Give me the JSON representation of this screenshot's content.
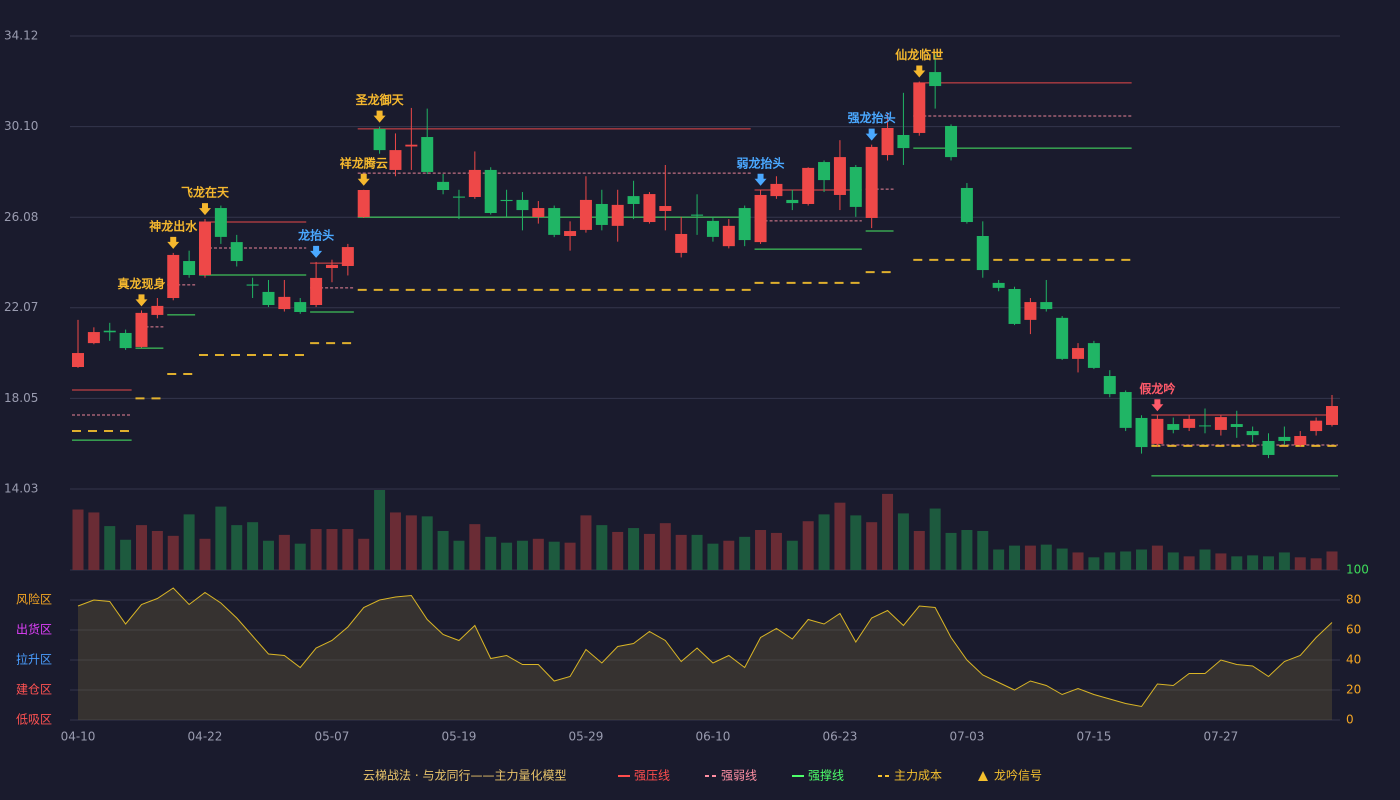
{
  "chart_data": {
    "type": "candlestick",
    "categories": [
      "04-10",
      null,
      null,
      null,
      null,
      null,
      null,
      null,
      "04-22",
      null,
      null,
      null,
      null,
      null,
      null,
      null,
      "05-07",
      null,
      null,
      null,
      null,
      null,
      null,
      null,
      "05-19",
      null,
      null,
      null,
      null,
      null,
      null,
      null,
      "05-29",
      null,
      null,
      null,
      null,
      null,
      null,
      null,
      "06-10",
      null,
      null,
      null,
      null,
      null,
      null,
      null,
      "06-23",
      null,
      null,
      null,
      null,
      null,
      null,
      null,
      "07-03",
      null,
      null,
      null,
      null,
      null,
      null,
      null,
      "07-15",
      null,
      null,
      null,
      null,
      null,
      null,
      null,
      "07-27",
      null,
      null,
      null,
      null,
      null,
      null,
      null
    ],
    "open": [
      19.44,
      20.5,
      21.05,
      20.95,
      20.33,
      21.75,
      22.5,
      24.14,
      23.52,
      26.49,
      24.98,
      23.1,
      22.77,
      22.01,
      22.32,
      22.19,
      23.83,
      23.92,
      26.09,
      30.0,
      28.18,
      29.22,
      29.64,
      27.65,
      27.0,
      26.98,
      28.18,
      26.85,
      26.85,
      26.09,
      26.49,
      25.25,
      25.52,
      26.67,
      25.7,
      27.02,
      25.87,
      26.36,
      24.5,
      26.2,
      25.92,
      24.8,
      26.49,
      24.98,
      27.02,
      26.85,
      26.67,
      28.53,
      27.07,
      28.31,
      26.05,
      28.84,
      29.73,
      29.82,
      32.52,
      30.13,
      27.38,
      25.25,
      23.17,
      22.9,
      21.53,
      22.32,
      21.62,
      19.8,
      20.5,
      19.04,
      18.33,
      17.18,
      16.03,
      16.91,
      16.74,
      16.85,
      16.65,
      16.91,
      16.6,
      16.16,
      16.34,
      15.98,
      16.6,
      16.87
    ],
    "close": [
      20.06,
      20.99,
      20.98,
      20.28,
      21.84,
      22.15,
      24.41,
      23.52,
      25.87,
      25.21,
      24.14,
      23.05,
      22.19,
      22.55,
      21.88,
      23.39,
      23.97,
      24.76,
      27.29,
      29.06,
      29.06,
      29.3,
      28.09,
      27.29,
      26.95,
      28.18,
      26.27,
      26.8,
      26.4,
      26.49,
      25.3,
      25.47,
      26.85,
      25.74,
      26.63,
      26.67,
      27.11,
      26.58,
      25.34,
      26.15,
      25.21,
      25.7,
      25.07,
      27.07,
      27.56,
      26.71,
      28.27,
      27.73,
      28.75,
      26.54,
      29.2,
      30.04,
      29.15,
      32.04,
      31.9,
      28.75,
      25.87,
      23.74,
      22.95,
      21.35,
      22.32,
      22.01,
      19.8,
      20.28,
      19.4,
      18.24,
      16.74,
      15.89,
      17.14,
      16.65,
      17.14,
      16.81,
      17.22,
      16.78,
      16.42,
      15.54,
      16.16,
      16.38,
      17.06,
      17.71
    ],
    "high": [
      21.53,
      21.2,
      21.4,
      21.1,
      21.95,
      22.5,
      24.5,
      24.6,
      26.0,
      26.6,
      25.3,
      23.4,
      23.3,
      23.3,
      22.5,
      24.1,
      24.2,
      24.9,
      27.3,
      30.1,
      29.8,
      30.93,
      30.9,
      28.0,
      27.3,
      29.0,
      28.3,
      27.3,
      27.2,
      26.8,
      26.6,
      25.9,
      27.9,
      27.3,
      27.3,
      27.7,
      27.2,
      28.4,
      26.1,
      27.1,
      26.1,
      26.0,
      26.6,
      27.3,
      27.9,
      27.3,
      28.3,
      28.6,
      29.5,
      28.4,
      29.3,
      30.7,
      31.6,
      32.1,
      33.3,
      30.2,
      27.6,
      25.9,
      23.3,
      23.0,
      22.5,
      23.3,
      21.7,
      20.5,
      20.6,
      19.3,
      18.4,
      17.3,
      17.3,
      17.2,
      17.3,
      17.6,
      17.3,
      17.5,
      16.8,
      16.5,
      16.8,
      16.6,
      17.2,
      18.2
    ],
    "low": [
      19.4,
      20.45,
      20.6,
      20.2,
      20.3,
      21.6,
      22.4,
      23.4,
      23.4,
      24.9,
      23.9,
      22.5,
      22.1,
      21.9,
      21.8,
      22.1,
      23.2,
      23.5,
      26.05,
      28.9,
      27.9,
      28.18,
      28.0,
      27.1,
      26.0,
      26.9,
      26.2,
      26.1,
      25.5,
      25.8,
      25.2,
      24.6,
      25.4,
      25.5,
      25.0,
      26.0,
      25.8,
      25.5,
      24.3,
      25.3,
      25.0,
      24.7,
      24.8,
      24.9,
      26.9,
      26.4,
      26.6,
      27.2,
      26.4,
      26.1,
      25.6,
      28.6,
      28.4,
      29.7,
      30.9,
      28.6,
      25.8,
      23.4,
      22.8,
      21.3,
      20.9,
      21.9,
      19.75,
      19.2,
      19.35,
      18.1,
      16.6,
      15.6,
      15.9,
      16.5,
      16.6,
      16.5,
      16.4,
      16.3,
      16.1,
      15.4,
      16.0,
      15.9,
      16.4,
      16.8
    ],
    "volume": [
      62,
      59,
      45,
      31,
      46,
      40,
      35,
      57,
      32,
      65,
      46,
      49,
      30,
      36,
      27,
      42,
      42,
      42,
      32,
      82,
      59,
      56,
      55,
      40,
      30,
      47,
      34,
      28,
      30,
      32,
      29,
      28,
      56,
      46,
      39,
      43,
      37,
      48,
      36,
      36,
      27,
      30,
      34,
      41,
      38,
      30,
      50,
      57,
      69,
      56,
      49,
      78,
      58,
      40,
      63,
      38,
      41,
      40,
      21,
      25,
      25,
      26,
      22,
      18,
      13,
      18,
      19,
      21,
      25,
      18,
      14,
      21,
      17,
      14,
      15,
      14,
      18,
      13,
      12,
      19
    ],
    "up_color": "#ee4848",
    "down_color": "#20b565",
    "ylim": [
      14.03,
      34.12
    ],
    "yticks": [
      14.03,
      18.05,
      22.07,
      26.08,
      {
        "value": 30.1,
        "label": "30.10"
      },
      34.12
    ],
    "levels": [
      {
        "start": 0,
        "end": 3,
        "values": [
          18.42,
          17.31,
          16.2,
          16.6
        ]
      },
      {
        "start": 4,
        "end": 5,
        "values": [
          null,
          21.22,
          20.28,
          18.05
        ]
      },
      {
        "start": 6,
        "end": 7,
        "values": [
          null,
          23.08,
          21.75,
          19.13
        ]
      },
      {
        "start": 8,
        "end": 14,
        "values": [
          25.87,
          24.72,
          23.52,
          19.97
        ]
      },
      {
        "start": 15,
        "end": 17,
        "values": [
          24.05,
          22.95,
          21.88,
          20.5
        ]
      },
      {
        "start": 18,
        "end": 42,
        "values": [
          30.0,
          28.04,
          26.09,
          22.86
        ]
      },
      {
        "start": 43,
        "end": 49,
        "values": [
          27.29,
          25.92,
          24.67,
          23.17
        ]
      },
      {
        "start": 50,
        "end": 51,
        "values": [
          null,
          27.33,
          25.47,
          23.65
        ]
      },
      {
        "start": 53,
        "end": 66,
        "values": [
          32.04,
          30.57,
          29.15,
          24.19
        ]
      },
      {
        "start": 68,
        "end": 79,
        "values": [
          17.31,
          15.98,
          14.61,
          15.94
        ]
      }
    ],
    "signals": [
      {
        "index": 4,
        "label": "真龙现身",
        "color": "#f5b82e"
      },
      {
        "index": 6,
        "label": "神龙出水",
        "color": "#f5b82e"
      },
      {
        "index": 8,
        "label": "飞龙在天",
        "color": "#f5b82e"
      },
      {
        "index": 15,
        "label": "龙抬头",
        "color": "#4aa8ff"
      },
      {
        "index": 18,
        "label": "祥龙腾云",
        "color": "#f5b82e"
      },
      {
        "index": 19,
        "label": "圣龙御天",
        "color": "#f5b82e"
      },
      {
        "index": 43,
        "label": "弱龙抬头",
        "color": "#4aa8ff"
      },
      {
        "index": 50,
        "label": "强龙抬头",
        "color": "#4aa8ff"
      },
      {
        "index": 53,
        "label": "仙龙临世",
        "color": "#f5b82e"
      },
      {
        "index": 68,
        "label": "假龙吟",
        "color": "#ff5a6a"
      }
    ],
    "indicator": {
      "values": [
        76,
        80,
        79,
        64,
        77,
        81,
        88,
        77,
        85,
        78,
        68,
        56,
        44,
        43,
        35,
        48,
        53,
        62,
        75,
        80,
        82,
        83,
        67,
        57,
        53,
        63,
        41,
        43,
        37,
        37,
        26,
        29,
        47,
        38,
        49,
        51,
        59,
        53,
        39,
        48,
        38,
        43,
        35,
        55,
        61,
        54,
        67,
        64,
        71,
        52,
        68,
        73,
        63,
        76,
        75,
        55,
        40,
        30,
        25,
        20,
        26,
        23,
        17,
        21,
        17,
        14,
        11,
        9,
        24,
        23,
        31,
        31,
        40,
        37,
        36,
        29,
        39,
        43,
        55,
        65
      ],
      "color": "#d9b526",
      "ylim": [
        0,
        100
      ],
      "yticks": [
        0,
        20,
        40,
        60,
        80,
        100
      ],
      "zones": [
        {
          "label": "风险区",
          "value": 80,
          "color": "#f5a623"
        },
        {
          "label": "出货区",
          "value": 60,
          "color": "#e040fb"
        },
        {
          "label": "拉升区",
          "value": 40,
          "color": "#4a9eff"
        },
        {
          "label": "建仓区",
          "value": 20,
          "color": "#ff5252"
        },
        {
          "label": "低吸区",
          "value": 0,
          "color": "#ff5252"
        }
      ]
    },
    "legend": {
      "title": "云梯战法 · 与龙同行——主力量化模型",
      "title_color": "#e8c36a",
      "items": [
        {
          "label": "强压线",
          "color": "#ff4d4d",
          "style": "solid"
        },
        {
          "label": "强弱线",
          "color": "#ff8fa3",
          "style": "dashed"
        },
        {
          "label": "强撑线",
          "color": "#4dff6a",
          "style": "solid"
        },
        {
          "label": "主力成本",
          "color": "#f5c02e",
          "style": "dashed"
        },
        {
          "label": "龙吟信号",
          "color": "#f5c02e",
          "style": "triangle"
        }
      ]
    }
  }
}
